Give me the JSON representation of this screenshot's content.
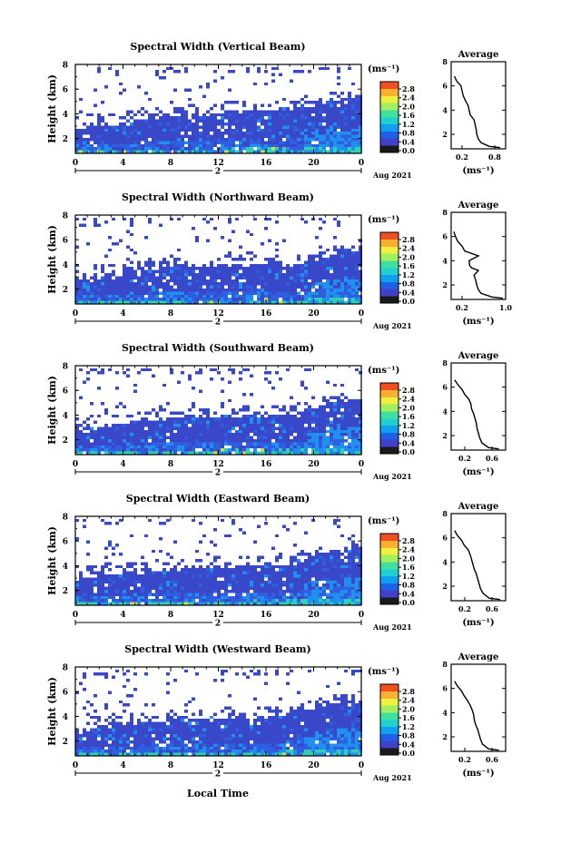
{
  "figure": {
    "footer_xlabel": "Local Time",
    "colorbar_unit": "(ms⁻¹)",
    "colorbar_ticks": [
      "0.0",
      "0.4",
      "0.8",
      "1.2",
      "1.6",
      "2.0",
      "2.4",
      "2.8"
    ],
    "colorbar_colors": [
      "#1a1a1a",
      "#4040c8",
      "#2060e8",
      "#10a0f0",
      "#20d0d0",
      "#40e0a0",
      "#a0f060",
      "#f0f040",
      "#f8b030",
      "#f05020"
    ],
    "date_label": "Aug 2021",
    "day_label": "2",
    "palette": {
      "background": "#ffffff",
      "low_width": "#3848c8",
      "mid_width": "#2090f0",
      "high_width": "#30d0b0",
      "peak_width": "#d0e040"
    }
  },
  "chart_data": [
    {
      "type": "heatmap",
      "title": "Spectral Width (Vertical Beam)",
      "ylabel": "Height (km)",
      "xlim": [
        0,
        24
      ],
      "xticks": [
        "0",
        "4",
        "8",
        "12",
        "16",
        "20",
        "0"
      ],
      "ylim": [
        0.8,
        8
      ],
      "yticks": [
        "2",
        "4",
        "6",
        "8"
      ],
      "dense_top_km": [
        3.0,
        3.3,
        3.5,
        3.8,
        4.0,
        4.1,
        4.2,
        4.3,
        4.4,
        4.6,
        5.0,
        5.3
      ],
      "average_profile": {
        "title": "Average",
        "xlabel": "(ms⁻¹)",
        "xticks": [
          "0.2",
          "0.8"
        ],
        "yticks": [
          "2",
          "4",
          "6",
          "8"
        ],
        "xlim": [
          0,
          1.0
        ],
        "height_km": [
          0.9,
          1.0,
          1.3,
          1.6,
          2.0,
          2.4,
          2.8,
          3.2,
          3.6,
          4.0,
          4.4,
          4.8,
          5.2,
          5.6,
          6.0,
          6.4,
          6.8
        ],
        "width_ms": [
          0.9,
          0.7,
          0.55,
          0.5,
          0.47,
          0.46,
          0.44,
          0.42,
          0.35,
          0.33,
          0.31,
          0.26,
          0.22,
          0.2,
          0.18,
          0.1,
          0.06
        ]
      }
    },
    {
      "type": "heatmap",
      "title": "Spectral Width (Northward Beam)",
      "ylabel": "Height (km)",
      "xlim": [
        0,
        24
      ],
      "xticks": [
        "0",
        "4",
        "8",
        "12",
        "16",
        "20",
        "0"
      ],
      "ylim": [
        0.8,
        8
      ],
      "yticks": [
        "2",
        "4",
        "6",
        "8"
      ],
      "dense_top_km": [
        2.8,
        3.0,
        3.3,
        3.6,
        3.9,
        4.0,
        4.0,
        4.0,
        4.0,
        3.9,
        4.3,
        5.2
      ],
      "average_profile": {
        "title": "Average",
        "xlabel": "(ms⁻¹)",
        "xticks": [
          "0.2",
          "1.0"
        ],
        "yticks": [
          "2",
          "4",
          "6",
          "8"
        ],
        "xlim": [
          0,
          1.0
        ],
        "height_km": [
          0.9,
          1.0,
          1.3,
          1.6,
          2.0,
          2.4,
          2.8,
          3.2,
          3.4,
          3.6,
          4.0,
          4.4,
          4.8,
          5.2,
          5.6,
          6.0,
          6.4
        ],
        "width_ms": [
          0.95,
          0.75,
          0.55,
          0.5,
          0.47,
          0.45,
          0.42,
          0.5,
          0.38,
          0.34,
          0.33,
          0.5,
          0.25,
          0.2,
          0.12,
          0.08,
          0.05
        ]
      }
    },
    {
      "type": "heatmap",
      "title": "Spectral Width (Southward Beam)",
      "ylabel": "Height (km)",
      "xlim": [
        0,
        24
      ],
      "xticks": [
        "0",
        "4",
        "8",
        "12",
        "16",
        "20",
        "0"
      ],
      "ylim": [
        0.8,
        8
      ],
      "yticks": [
        "2",
        "4",
        "6",
        "8"
      ],
      "dense_top_km": [
        2.9,
        3.2,
        3.4,
        3.7,
        3.9,
        4.0,
        4.1,
        4.1,
        4.1,
        4.2,
        4.6,
        5.3
      ],
      "average_profile": {
        "title": "Average",
        "xlabel": "(ms⁻¹)",
        "xticks": [
          "0.2",
          "0.6"
        ],
        "yticks": [
          "2",
          "4",
          "6",
          "8"
        ],
        "xlim": [
          0,
          0.8
        ],
        "height_km": [
          0.9,
          1.0,
          1.4,
          1.8,
          2.2,
          2.6,
          3.0,
          3.4,
          3.8,
          4.2,
          4.6,
          5.0,
          5.4,
          5.8,
          6.2,
          6.6
        ],
        "width_ms": [
          0.7,
          0.55,
          0.45,
          0.42,
          0.4,
          0.38,
          0.37,
          0.35,
          0.33,
          0.3,
          0.29,
          0.26,
          0.2,
          0.16,
          0.1,
          0.05
        ]
      }
    },
    {
      "type": "heatmap",
      "title": "Spectral Width (Eastward Beam)",
      "ylabel": "Height (km)",
      "xlim": [
        0,
        24
      ],
      "xticks": [
        "0",
        "4",
        "8",
        "12",
        "16",
        "20",
        "0"
      ],
      "ylim": [
        0.8,
        8
      ],
      "yticks": [
        "2",
        "4",
        "6",
        "8"
      ],
      "dense_top_km": [
        3.0,
        3.3,
        3.5,
        3.7,
        3.8,
        3.9,
        4.0,
        4.1,
        4.1,
        4.3,
        4.8,
        5.4
      ],
      "average_profile": {
        "title": "Average",
        "xlabel": "(ms⁻¹)",
        "xticks": [
          "0.2",
          "0.6"
        ],
        "yticks": [
          "2",
          "4",
          "6",
          "8"
        ],
        "xlim": [
          0,
          0.8
        ],
        "height_km": [
          0.9,
          1.0,
          1.4,
          1.8,
          2.2,
          2.6,
          3.0,
          3.4,
          3.8,
          4.2,
          4.6,
          5.0,
          5.4,
          5.8,
          6.2,
          6.6
        ],
        "width_ms": [
          0.72,
          0.56,
          0.47,
          0.43,
          0.41,
          0.39,
          0.37,
          0.34,
          0.32,
          0.3,
          0.28,
          0.25,
          0.19,
          0.15,
          0.09,
          0.05
        ]
      }
    },
    {
      "type": "heatmap",
      "title": "Spectral Width (Westward Beam)",
      "ylabel": "Height (km)",
      "xlim": [
        0,
        24
      ],
      "xticks": [
        "0",
        "4",
        "8",
        "12",
        "16",
        "20",
        "0"
      ],
      "ylim": [
        0.8,
        8
      ],
      "yticks": [
        "2",
        "4",
        "6",
        "8"
      ],
      "dense_top_km": [
        2.9,
        3.2,
        3.4,
        3.6,
        3.8,
        3.9,
        4.0,
        4.0,
        4.1,
        4.4,
        4.9,
        5.3
      ],
      "average_profile": {
        "title": "Average",
        "xlabel": "(ms⁻¹)",
        "xticks": [
          "0.2",
          "0.6"
        ],
        "yticks": [
          "2",
          "4",
          "6",
          "8"
        ],
        "xlim": [
          0,
          0.8
        ],
        "height_km": [
          0.9,
          1.0,
          1.4,
          1.8,
          2.2,
          2.6,
          3.0,
          3.4,
          3.8,
          4.2,
          4.6,
          5.0,
          5.4,
          5.8,
          6.2,
          6.6
        ],
        "width_ms": [
          0.7,
          0.55,
          0.46,
          0.43,
          0.41,
          0.39,
          0.36,
          0.34,
          0.33,
          0.31,
          0.28,
          0.24,
          0.19,
          0.15,
          0.09,
          0.05
        ]
      }
    }
  ]
}
